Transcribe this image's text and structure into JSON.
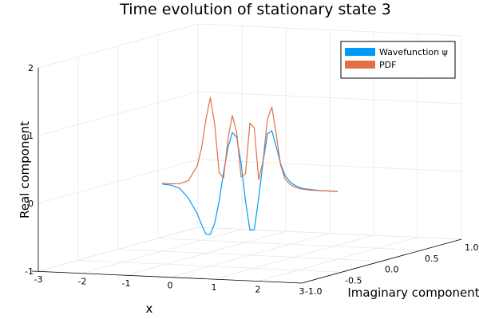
{
  "chart_data": {
    "type": "line",
    "title": "Time evolution of stationary state 3",
    "xlabel": "x",
    "ylabel": "Imaginary component",
    "zlabel": "Real component",
    "xlim": [
      -3,
      3
    ],
    "ylim": [
      -1,
      1
    ],
    "zlim": [
      -1,
      2
    ],
    "x_ticks": [
      "-3",
      "-2",
      "-1",
      "0",
      "1",
      "2",
      "3"
    ],
    "y_ticks": [
      "-1.0",
      "-0.5",
      "0.0",
      "0.5",
      "1.0"
    ],
    "z_ticks": [
      "-1",
      "0",
      "1",
      "2"
    ],
    "grid": true,
    "legend_position": "top-right",
    "series": [
      {
        "name": "Wavefunction ψ",
        "color": "#009af9",
        "x": [
          -2,
          -1.8,
          -1.6,
          -1.4,
          -1.2,
          -1.1,
          -1.0,
          -0.9,
          -0.8,
          -0.7,
          -0.6,
          -0.5,
          -0.4,
          -0.3,
          -0.2,
          -0.1,
          0.0,
          0.1,
          0.2,
          0.3,
          0.4,
          0.5,
          0.6,
          0.7,
          0.8,
          0.9,
          1.0,
          1.1,
          1.2,
          1.4,
          1.6,
          1.8,
          2.0
        ],
        "z": [
          -0.01,
          -0.02,
          -0.06,
          -0.2,
          -0.42,
          -0.58,
          -0.72,
          -0.72,
          -0.55,
          -0.22,
          0.2,
          0.57,
          0.8,
          0.73,
          0.35,
          -0.2,
          -0.63,
          -0.62,
          -0.15,
          0.38,
          0.8,
          0.85,
          0.62,
          0.37,
          0.2,
          0.12,
          0.07,
          0.04,
          0.02,
          0.01,
          0.0,
          0.0,
          0.0
        ]
      },
      {
        "name": "PDF",
        "color": "#e26f46",
        "x": [
          -2,
          -1.8,
          -1.6,
          -1.4,
          -1.2,
          -1.1,
          -1.0,
          -0.9,
          -0.8,
          -0.7,
          -0.6,
          -0.5,
          -0.4,
          -0.3,
          -0.2,
          -0.1,
          0.0,
          0.1,
          0.2,
          0.3,
          0.4,
          0.5,
          0.6,
          0.7,
          0.8,
          0.9,
          1.0,
          1.1,
          1.2,
          1.4,
          1.6,
          1.8,
          2.0
        ],
        "z": [
          0.0,
          0.0,
          0.01,
          0.06,
          0.28,
          0.55,
          0.98,
          1.3,
          0.9,
          0.2,
          0.12,
          0.7,
          1.05,
          0.8,
          0.15,
          0.2,
          0.95,
          0.88,
          0.12,
          0.4,
          1.02,
          1.2,
          0.8,
          0.35,
          0.15,
          0.08,
          0.04,
          0.02,
          0.01,
          0.0,
          0.0,
          0.0,
          0.0
        ]
      }
    ]
  }
}
